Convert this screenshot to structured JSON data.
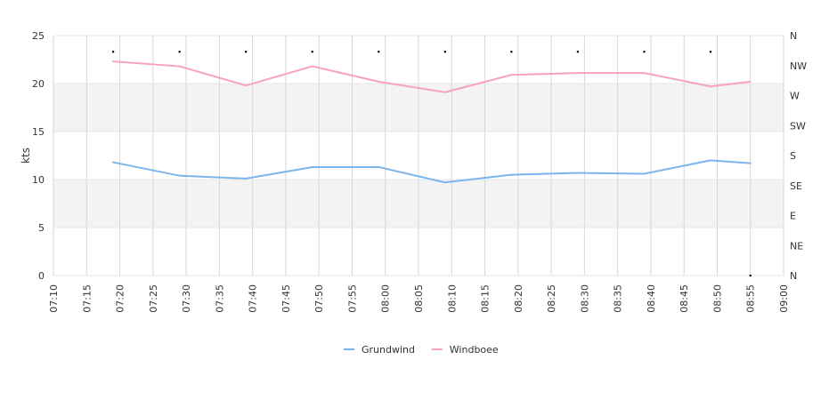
{
  "chart_data": {
    "type": "line",
    "ylabel": "kts",
    "ylim": [
      0,
      25
    ],
    "y_ticks": [
      "0",
      "5",
      "10",
      "15",
      "20",
      "25"
    ],
    "x_range": [
      "07:10",
      "09:00"
    ],
    "x_ticks": [
      "07:10",
      "07:15",
      "07:20",
      "07:25",
      "07:30",
      "07:35",
      "07:40",
      "07:45",
      "07:50",
      "07:55",
      "08:00",
      "08:05",
      "08:10",
      "08:15",
      "08:20",
      "08:25",
      "08:30",
      "08:35",
      "08:40",
      "08:45",
      "08:50",
      "08:55",
      "09:00"
    ],
    "direction_axis": [
      "N",
      "NE",
      "E",
      "SE",
      "S",
      "SW",
      "W",
      "NW",
      "N"
    ],
    "grid": true,
    "legend_position": "bottom",
    "x": [
      "07:19",
      "07:29",
      "07:39",
      "07:49",
      "07:59",
      "08:09",
      "08:19",
      "08:29",
      "08:39",
      "08:49",
      "08:55"
    ],
    "series": [
      {
        "name": "Grundwind",
        "color": "#7cb5ec",
        "values": [
          11.8,
          10.4,
          10.1,
          11.3,
          11.3,
          9.7,
          10.5,
          10.7,
          10.6,
          12.0,
          11.7
        ]
      },
      {
        "name": "Windboee",
        "color": "#f7a1c4",
        "values": [
          22.3,
          21.8,
          19.8,
          21.8,
          20.2,
          19.1,
          20.9,
          21.1,
          21.1,
          19.7,
          20.2
        ]
      }
    ],
    "direction_x": [
      "07:19",
      "07:29",
      "07:39",
      "07:49",
      "07:59",
      "08:09",
      "08:19",
      "08:29",
      "08:39",
      "08:49",
      "08:55"
    ],
    "direction_values": [
      "NW",
      "NW",
      "NW",
      "NW",
      "NW",
      "NW",
      "NW",
      "NW",
      "NW",
      "NW",
      "N"
    ]
  }
}
